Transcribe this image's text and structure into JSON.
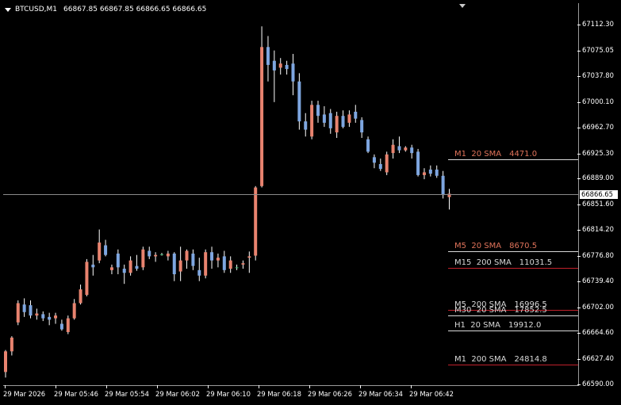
{
  "header": {
    "symbol": "BTCUSD,M1",
    "ohlc": "66867.85 66867.85 66866.65 66866.65"
  },
  "bid_price": "66866.65",
  "price_axis": [
    "67112.30",
    "67075.05",
    "67037.80",
    "67000.10",
    "66962.70",
    "66925.30",
    "66889.00",
    "66851.60",
    "66814.20",
    "66776.80",
    "66739.40",
    "66702.00",
    "66664.60",
    "66627.40",
    "66590.00"
  ],
  "time_axis": [
    "29 Mar 2026",
    "29 Mar 05:46",
    "29 Mar 05:54",
    "29 Mar 06:02",
    "29 Mar 06:10",
    "29 Mar 06:18",
    "29 Mar 06:26",
    "29 Mar 06:34",
    "29 Mar 06:42"
  ],
  "ma_labels": [
    {
      "name": "M1  20 SMA",
      "value": "4471.0",
      "color": "#e0735a",
      "line_color": "#d8d8d8"
    },
    {
      "name": "M5  20 SMA",
      "value": "8670.5",
      "color": "#e0735a",
      "line_color": "#d8d8d8"
    },
    {
      "name": "M15  200 SMA",
      "value": "11031.5",
      "color": "#d8d8d8",
      "line_color": "#c0202a"
    },
    {
      "name": "M5  200 SMA",
      "value": "16996.5",
      "color": "#d8d8d8",
      "line_color": "#c0202a"
    },
    {
      "name": "M30  20 SMA",
      "value": "17852.5",
      "color": "#d8d8d8",
      "line_color": "#d8d8d8"
    },
    {
      "name": "H1  20 SMA",
      "value": "19912.0",
      "color": "#d8d8d8",
      "line_color": "#d8d8d8"
    },
    {
      "name": "M1  200 SMA",
      "value": "24814.8",
      "color": "#d8d8d8",
      "line_color": "#c0202a"
    }
  ],
  "colors": {
    "bull": "#e8836f",
    "bear": "#7ea6e0",
    "doji": "#3cb371",
    "background": "#000000",
    "grid_text": "#ffffff"
  },
  "chart_data": {
    "type": "candlestick",
    "symbol": "BTCUSD",
    "timeframe": "M1",
    "ylim": [
      66590.0,
      67128.0
    ],
    "candles": [
      {
        "o": 66608,
        "h": 66640,
        "l": 66600,
        "c": 66638
      },
      {
        "o": 66638,
        "h": 66660,
        "l": 66632,
        "c": 66658
      },
      {
        "o": 66680,
        "h": 66712,
        "l": 66676,
        "c": 66708
      },
      {
        "o": 66706,
        "h": 66715,
        "l": 66688,
        "c": 66695
      },
      {
        "o": 66705,
        "h": 66712,
        "l": 66686,
        "c": 66690
      },
      {
        "o": 66690,
        "h": 66700,
        "l": 66684,
        "c": 66693
      },
      {
        "o": 66692,
        "h": 66696,
        "l": 66682,
        "c": 66686
      },
      {
        "o": 66688,
        "h": 66694,
        "l": 66676,
        "c": 66684
      },
      {
        "o": 66686,
        "h": 66694,
        "l": 66678,
        "c": 66690
      },
      {
        "o": 66678,
        "h": 66684,
        "l": 66668,
        "c": 66670
      },
      {
        "o": 66666,
        "h": 66690,
        "l": 66663,
        "c": 66686
      },
      {
        "o": 66686,
        "h": 66714,
        "l": 66684,
        "c": 66708
      },
      {
        "o": 66708,
        "h": 66735,
        "l": 66706,
        "c": 66728
      },
      {
        "o": 66720,
        "h": 66772,
        "l": 66718,
        "c": 66768
      },
      {
        "o": 66764,
        "h": 66778,
        "l": 66748,
        "c": 66760
      },
      {
        "o": 66770,
        "h": 66815,
        "l": 66766,
        "c": 66796
      },
      {
        "o": 66792,
        "h": 66800,
        "l": 66776,
        "c": 66778
      },
      {
        "o": 66756,
        "h": 66764,
        "l": 66750,
        "c": 66760
      },
      {
        "o": 66780,
        "h": 66786,
        "l": 66750,
        "c": 66760
      },
      {
        "o": 66758,
        "h": 66764,
        "l": 66736,
        "c": 66752
      },
      {
        "o": 66752,
        "h": 66776,
        "l": 66748,
        "c": 66770
      },
      {
        "o": 66762,
        "h": 66778,
        "l": 66755,
        "c": 66758
      },
      {
        "o": 66760,
        "h": 66790,
        "l": 66756,
        "c": 66786
      },
      {
        "o": 66784,
        "h": 66790,
        "l": 66772,
        "c": 66776
      },
      {
        "o": 66776,
        "h": 66782,
        "l": 66768,
        "c": 66778
      },
      {
        "o": 66778,
        "h": 66781,
        "l": 66777,
        "c": 66779
      },
      {
        "o": 66776,
        "h": 66784,
        "l": 66770,
        "c": 66780
      },
      {
        "o": 66780,
        "h": 66782,
        "l": 66740,
        "c": 66750
      },
      {
        "o": 66754,
        "h": 66790,
        "l": 66740,
        "c": 66770
      },
      {
        "o": 66770,
        "h": 66786,
        "l": 66758,
        "c": 66784
      },
      {
        "o": 66780,
        "h": 66786,
        "l": 66756,
        "c": 66762
      },
      {
        "o": 66756,
        "h": 66774,
        "l": 66740,
        "c": 66748
      },
      {
        "o": 66748,
        "h": 66786,
        "l": 66744,
        "c": 66782
      },
      {
        "o": 66782,
        "h": 66790,
        "l": 66758,
        "c": 66770
      },
      {
        "o": 66770,
        "h": 66780,
        "l": 66760,
        "c": 66774
      },
      {
        "o": 66776,
        "h": 66784,
        "l": 66752,
        "c": 66756
      },
      {
        "o": 66758,
        "h": 66776,
        "l": 66752,
        "c": 66770
      },
      {
        "o": 66760,
        "h": 66764,
        "l": 66756,
        "c": 66760
      },
      {
        "o": 66764,
        "h": 66770,
        "l": 66758,
        "c": 66766
      },
      {
        "o": 66774,
        "h": 66783,
        "l": 66752,
        "c": 66776
      },
      {
        "o": 66777,
        "h": 66878,
        "l": 66770,
        "c": 66876
      },
      {
        "o": 66878,
        "h": 67110,
        "l": 66876,
        "c": 67080
      },
      {
        "o": 67080,
        "h": 67096,
        "l": 67030,
        "c": 67054
      },
      {
        "o": 67060,
        "h": 67075,
        "l": 67000,
        "c": 67046
      },
      {
        "o": 67050,
        "h": 67064,
        "l": 67040,
        "c": 67056
      },
      {
        "o": 67054,
        "h": 67060,
        "l": 67040,
        "c": 67048
      },
      {
        "o": 67056,
        "h": 67070,
        "l": 67010,
        "c": 67030
      },
      {
        "o": 67030,
        "h": 67042,
        "l": 66960,
        "c": 66972
      },
      {
        "o": 66972,
        "h": 66984,
        "l": 66950,
        "c": 66960
      },
      {
        "o": 66950,
        "h": 67002,
        "l": 66946,
        "c": 66996
      },
      {
        "o": 66996,
        "h": 67002,
        "l": 66970,
        "c": 66980
      },
      {
        "o": 66982,
        "h": 66994,
        "l": 66964,
        "c": 66970
      },
      {
        "o": 66984,
        "h": 66990,
        "l": 66954,
        "c": 66962
      },
      {
        "o": 66956,
        "h": 66986,
        "l": 66948,
        "c": 66980
      },
      {
        "o": 66980,
        "h": 66988,
        "l": 66962,
        "c": 66964
      },
      {
        "o": 66970,
        "h": 66988,
        "l": 66964,
        "c": 66982
      },
      {
        "o": 66986,
        "h": 66996,
        "l": 66970,
        "c": 66976
      },
      {
        "o": 66974,
        "h": 66978,
        "l": 66948,
        "c": 66956
      },
      {
        "o": 66946,
        "h": 66950,
        "l": 66926,
        "c": 66928
      },
      {
        "o": 66920,
        "h": 66924,
        "l": 66904,
        "c": 66912
      },
      {
        "o": 66910,
        "h": 66918,
        "l": 66900,
        "c": 66903
      },
      {
        "o": 66898,
        "h": 66928,
        "l": 66894,
        "c": 66924
      },
      {
        "o": 66926,
        "h": 66946,
        "l": 66918,
        "c": 66938
      },
      {
        "o": 66936,
        "h": 66950,
        "l": 66926,
        "c": 66930
      },
      {
        "o": 66930,
        "h": 66936,
        "l": 66928,
        "c": 66934
      },
      {
        "o": 66934,
        "h": 66938,
        "l": 66918,
        "c": 66926
      },
      {
        "o": 66928,
        "h": 66932,
        "l": 66892,
        "c": 66894
      },
      {
        "o": 66894,
        "h": 66904,
        "l": 66888,
        "c": 66898
      },
      {
        "o": 66902,
        "h": 66908,
        "l": 66892,
        "c": 66896
      },
      {
        "o": 66902,
        "h": 66908,
        "l": 66890,
        "c": 66893
      },
      {
        "o": 66893,
        "h": 66900,
        "l": 66860,
        "c": 66865
      },
      {
        "o": 66862,
        "h": 66874,
        "l": 66844,
        "c": 66867
      }
    ]
  }
}
